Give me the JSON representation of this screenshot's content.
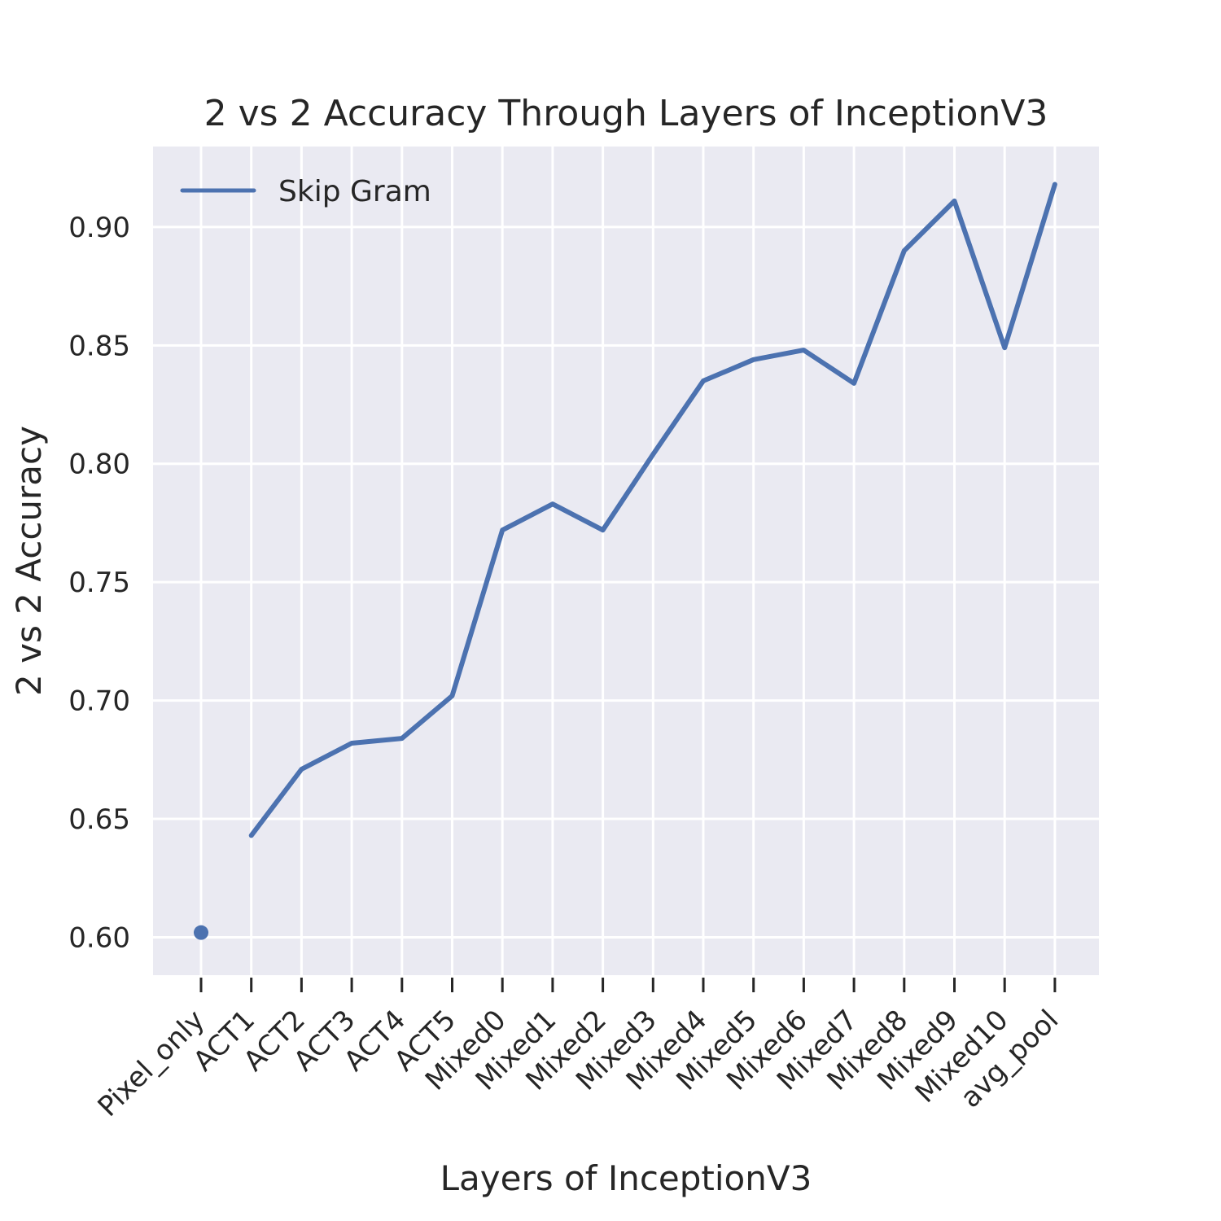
{
  "chart_data": {
    "type": "line",
    "title": "2 vs 2 Accuracy Through Layers of InceptionV3",
    "xlabel": "Layers of InceptionV3",
    "ylabel": "2 vs 2 Accuracy",
    "categories": [
      "Pixel_only",
      "ACT1",
      "ACT2",
      "ACT3",
      "ACT4",
      "ACT5",
      "Mixed0",
      "Mixed1",
      "Mixed2",
      "Mixed3",
      "Mixed4",
      "Mixed5",
      "Mixed6",
      "Mixed7",
      "Mixed8",
      "Mixed9",
      "Mixed10",
      "avg_pool"
    ],
    "series": [
      {
        "name": "Skip Gram",
        "values": [
          0.602,
          0.643,
          0.671,
          0.682,
          0.684,
          0.702,
          0.772,
          0.783,
          0.772,
          0.804,
          0.835,
          0.844,
          0.848,
          0.834,
          0.89,
          0.911,
          0.849,
          0.918
        ],
        "color": "#4c72b0"
      }
    ],
    "yticks": [
      "0.60",
      "0.65",
      "0.70",
      "0.75",
      "0.80",
      "0.85",
      "0.90"
    ],
    "ylim": [
      0.584,
      0.934
    ],
    "grid": true,
    "background_color": "#eaeaf2",
    "legend_position": "top-left"
  }
}
